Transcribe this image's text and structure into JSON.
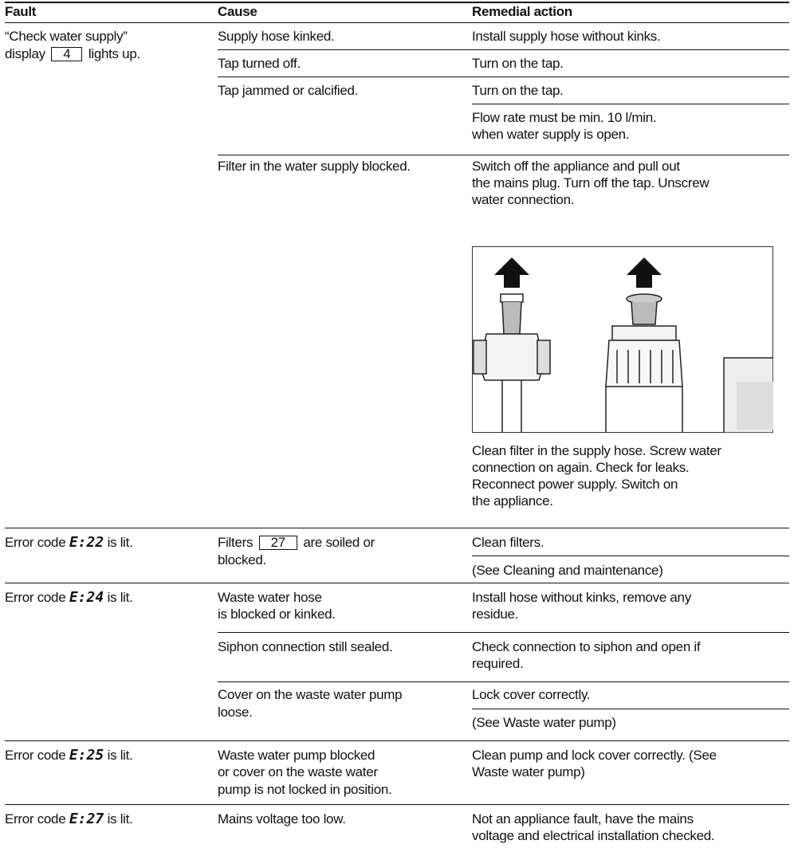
{
  "header": {
    "fault": "Fault",
    "cause": "Cause",
    "remedy": "Remedial action"
  },
  "rows": [
    {
      "fault": [
        [
          "“Check water supply”"
        ],
        [
          "display",
          {
            "box": "4"
          },
          "lights up."
        ]
      ],
      "causes": [
        {
          "text": [
            "Supply hose kinked."
          ],
          "remedies": [
            [
              "Install supply hose without kinks."
            ]
          ]
        },
        {
          "text": [
            "Tap turned off."
          ],
          "remedies": [
            [
              "Turn on the tap."
            ]
          ]
        },
        {
          "text": [
            "Tap jammed or calcified."
          ],
          "remedies": [
            [
              "Turn on the tap."
            ],
            [
              "Flow rate must be min. 10 l/min.",
              "when water supply is open."
            ]
          ]
        },
        {
          "text": [
            "Filter in the water supply blocked."
          ],
          "remedies": [
            [
              "Switch off the appliance and pull out",
              "the mains plug. Turn off the tap. Unscrew",
              "water connection."
            ],
            [
              "Clean filter in the supply hose. Screw water",
              "connection on again. Check for leaks.",
              "Reconnect power supply. Switch on",
              "the appliance."
            ]
          ]
        }
      ]
    },
    {
      "fault": [
        [
          "Error code",
          {
            "code": "E:22"
          },
          "is lit."
        ]
      ],
      "causes": [
        {
          "text": [
            [
              "Filters",
              {
                "box": "27"
              },
              "are soiled or"
            ],
            "blocked."
          ],
          "remedies": [
            [
              "Clean filters."
            ],
            [
              "(See Cleaning and maintenance)"
            ]
          ]
        }
      ]
    },
    {
      "fault": [
        [
          "Error code",
          {
            "code": "E:24"
          },
          "is lit."
        ]
      ],
      "causes": [
        {
          "text": [
            "Waste water hose",
            "is blocked or kinked."
          ],
          "remedies": [
            [
              "Install hose without kinks, remove any",
              "residue."
            ]
          ]
        },
        {
          "text": [
            "Siphon connection still sealed."
          ],
          "remedies": [
            [
              "Check connection to siphon and open if",
              "required."
            ]
          ]
        },
        {
          "text": [
            "Cover on the waste water pump",
            "loose."
          ],
          "remedies": [
            [
              "Lock cover correctly."
            ],
            [
              "(See Waste water pump)"
            ]
          ]
        }
      ]
    },
    {
      "fault": [
        [
          "Error code",
          {
            "code": "E:25"
          },
          "is lit."
        ]
      ],
      "causes": [
        {
          "text": [
            "Waste water pump blocked",
            "or cover on the waste water",
            "pump is not locked in position."
          ],
          "remedies": [
            [
              "Clean pump and lock cover correctly. (See",
              "Waste water pump)"
            ]
          ]
        }
      ]
    },
    {
      "fault": [
        [
          "Error code",
          {
            "code": "E:27"
          },
          "is lit."
        ]
      ],
      "causes": [
        {
          "text": [
            "Mains voltage too low."
          ],
          "remedies": [
            [
              "Not an appliance fault, have the mains",
              "voltage and electrical installation checked."
            ]
          ]
        }
      ]
    }
  ]
}
